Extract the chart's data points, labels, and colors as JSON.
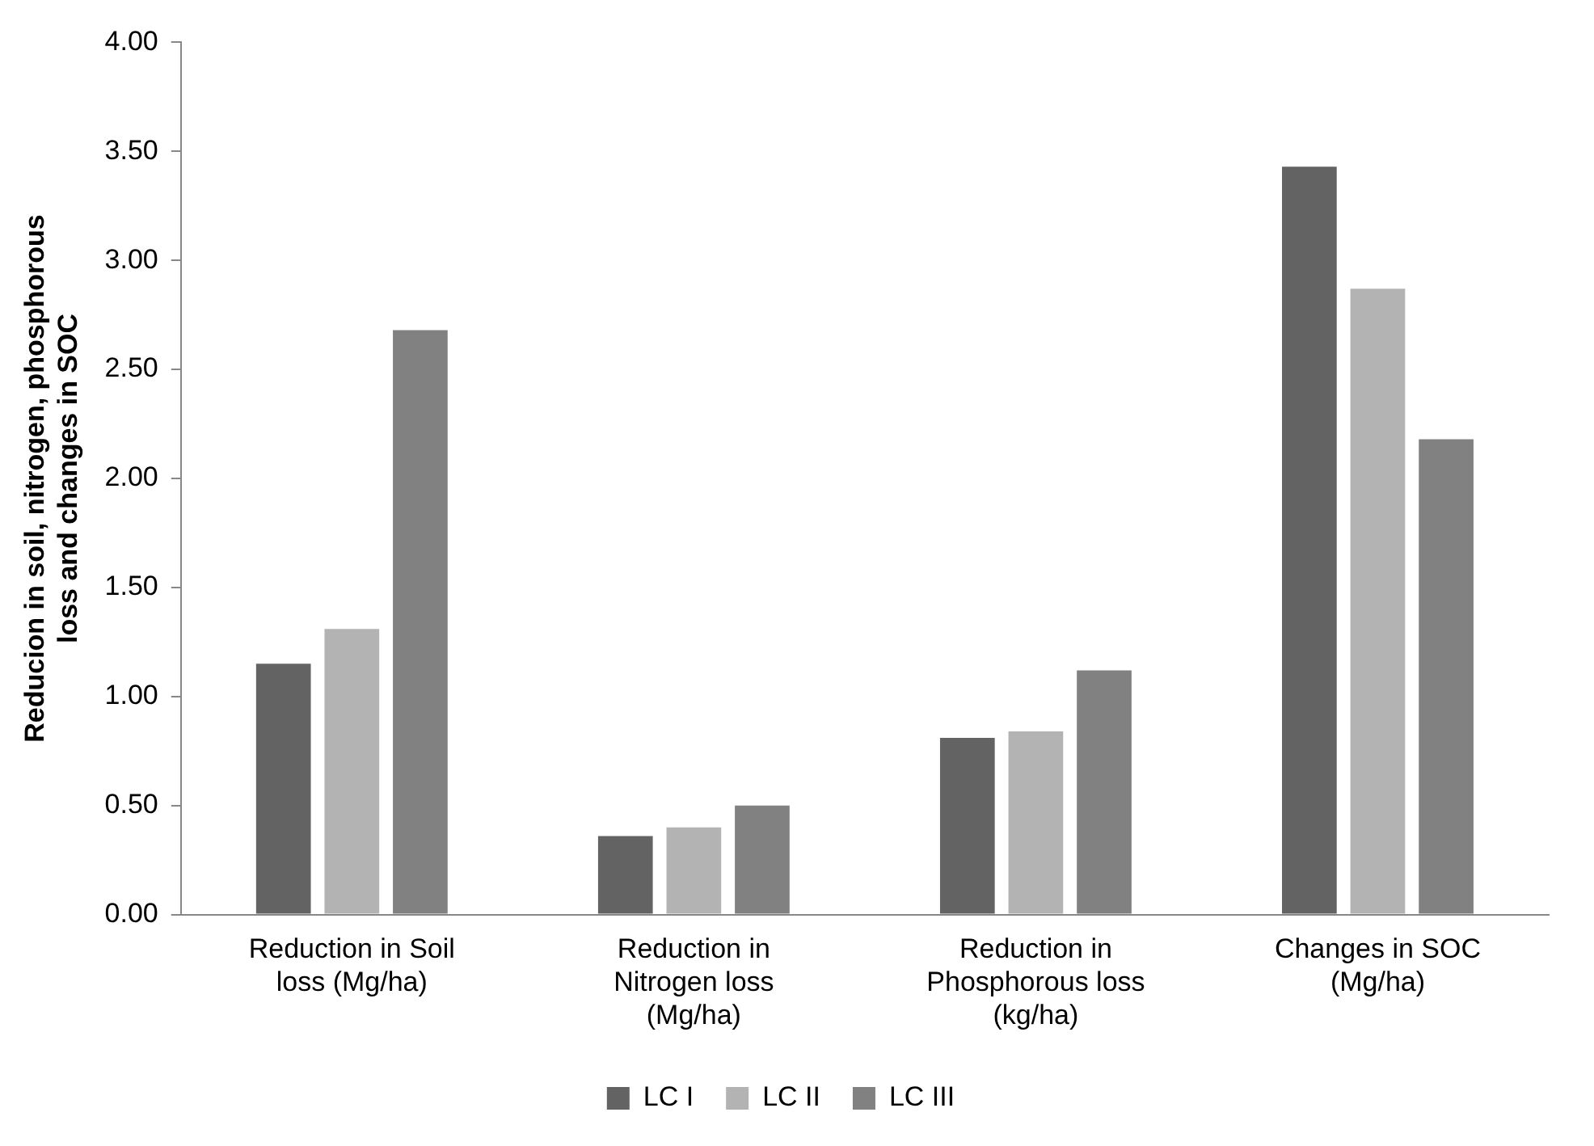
{
  "chart_data": {
    "type": "bar",
    "ylabel": "Reducion in soil, nitrogen, phosphorous loss and changes in SOC",
    "categories": [
      "Reduction in Soil loss (Mg/ha)",
      "Reduction in Nitrogen loss (Mg/ha)",
      "Reduction in Phosphorous loss (kg/ha)",
      "Changes in SOC (Mg/ha)"
    ],
    "series": [
      {
        "name": "LC I",
        "color": "#636363",
        "values": [
          1.15,
          0.36,
          0.81,
          3.43
        ]
      },
      {
        "name": "LC II",
        "color": "#b3b3b3",
        "values": [
          1.31,
          0.4,
          0.84,
          2.87
        ]
      },
      {
        "name": "LC III",
        "color": "#818181",
        "values": [
          2.68,
          0.5,
          1.12,
          2.18
        ]
      }
    ],
    "ylim": [
      0,
      4
    ],
    "yticks": [
      {
        "value": 0,
        "label": "0.00"
      },
      {
        "value": 0.5,
        "label": "0.50"
      },
      {
        "value": 1,
        "label": "1.00"
      },
      {
        "value": 1.5,
        "label": "1.50"
      },
      {
        "value": 2,
        "label": "2.00"
      },
      {
        "value": 2.5,
        "label": "2.50"
      },
      {
        "value": 3,
        "label": "3.00"
      },
      {
        "value": 3.5,
        "label": "3.50"
      },
      {
        "value": 4,
        "label": "4.00"
      }
    ],
    "grid": false,
    "legend": "bottom"
  }
}
